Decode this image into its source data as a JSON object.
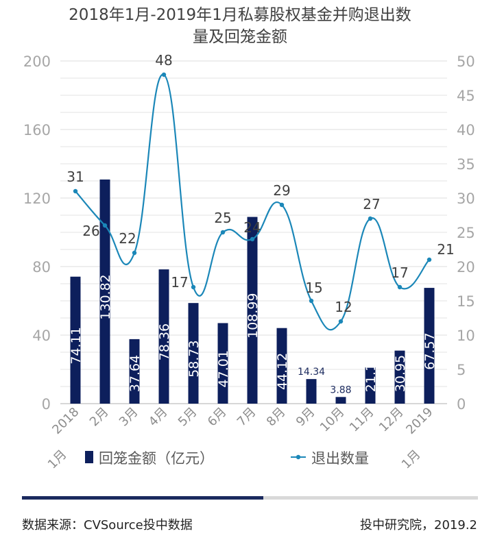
{
  "chart_data": {
    "type": "bar+line",
    "title_lines": [
      "2018年1月-2019年1月私募股权基金并购退出数",
      "量及回笼金额"
    ],
    "categories": [
      "2018\n1月",
      "2月",
      "3月",
      "4月",
      "5月",
      "6月",
      "7月",
      "8月",
      "9月",
      "10月",
      "11月",
      "12月",
      "2019\n1月"
    ],
    "series": [
      {
        "name": "回笼金额（亿元）",
        "type": "bar",
        "axis": "left",
        "color": "#0d1f5c",
        "values": [
          74.11,
          130.82,
          37.64,
          78.36,
          58.73,
          47.01,
          108.99,
          44.12,
          14.34,
          3.88,
          21.15,
          30.95,
          67.57
        ],
        "labels": [
          "74.11",
          "130.82",
          "37.64",
          "78.36",
          "58.73",
          "47.01",
          "108.99",
          "44.12",
          "14.34",
          "3.88",
          "21.15",
          "30.95",
          "67.57"
        ]
      },
      {
        "name": "退出数量",
        "type": "line",
        "axis": "right",
        "color": "#1b87b8",
        "smooth": true,
        "values": [
          31,
          26,
          22,
          48,
          17,
          25,
          24,
          29,
          15,
          12,
          27,
          17,
          21
        ],
        "labels": [
          "31",
          "26",
          "22",
          "48",
          "17",
          "25",
          "24",
          "29",
          "15",
          "12",
          "27",
          "17",
          "21"
        ]
      }
    ],
    "y_left": {
      "min": 0,
      "max": 200,
      "ticks": [
        "0",
        "40",
        "80",
        "120",
        "160",
        "200"
      ]
    },
    "y_right": {
      "min": 0,
      "max": 50,
      "ticks": [
        "0",
        "5",
        "10",
        "15",
        "20",
        "25",
        "30",
        "35",
        "40",
        "45",
        "50"
      ]
    },
    "grid": true,
    "legend_position": "bottom"
  },
  "footer": {
    "source": "数据来源：CVSource投中数据",
    "credit": "投中研究院，2019.2"
  },
  "progress": {
    "fraction": 0.53
  }
}
